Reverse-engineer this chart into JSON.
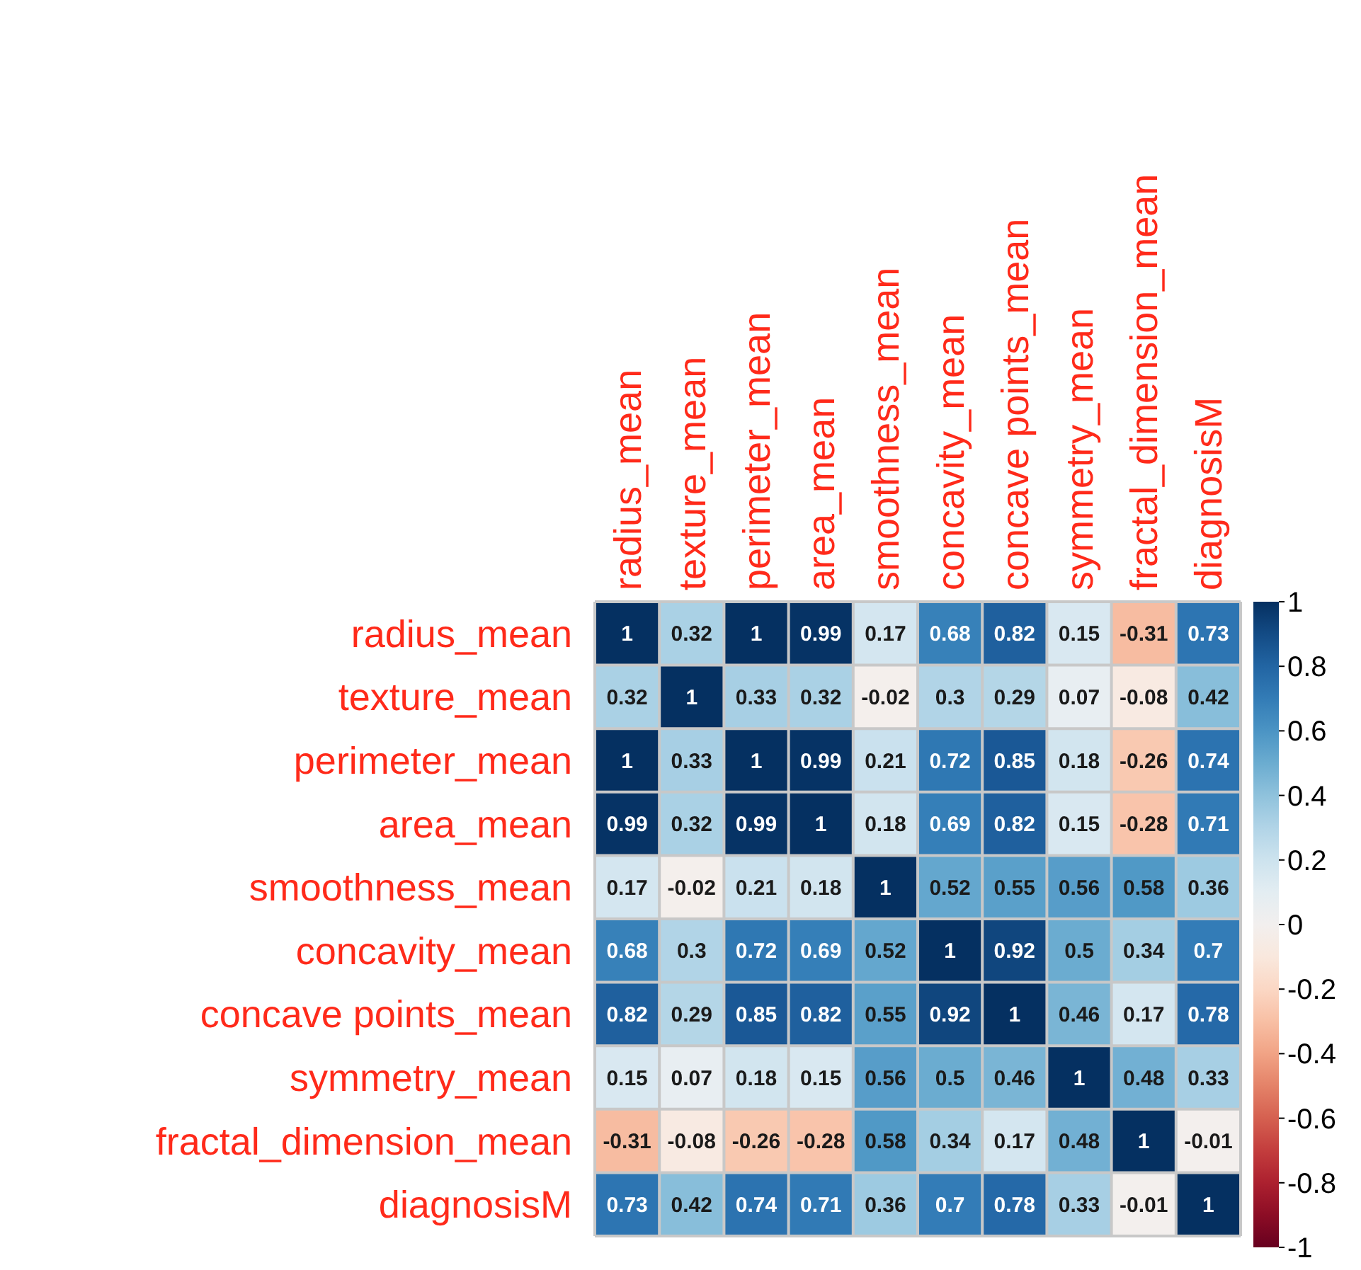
{
  "chart_data": {
    "type": "heatmap",
    "categories": [
      "radius_mean",
      "texture_mean",
      "perimeter_mean",
      "area_mean",
      "smoothness_mean",
      "concavity_mean",
      "concave points_mean",
      "symmetry_mean",
      "fractal_dimension_mean",
      "diagnosisM"
    ],
    "y_categories": [
      "radius_mean",
      "texture_mean",
      "perimeter_mean",
      "area_mean",
      "smoothness_mean",
      "concavity_mean",
      "concave points_mean",
      "symmetry_mean",
      "fractal_dimension_mean",
      "diagnosisM"
    ],
    "cells": [
      [
        1,
        0.32,
        1,
        0.99,
        0.17,
        0.68,
        0.82,
        0.15,
        -0.31,
        0.73
      ],
      [
        0.32,
        1,
        0.33,
        0.32,
        -0.02,
        0.3,
        0.29,
        0.07,
        -0.08,
        0.42
      ],
      [
        1,
        0.33,
        1,
        0.99,
        0.21,
        0.72,
        0.85,
        0.18,
        -0.26,
        0.74
      ],
      [
        0.99,
        0.32,
        0.99,
        1,
        0.18,
        0.69,
        0.82,
        0.15,
        -0.28,
        0.71
      ],
      [
        0.17,
        -0.02,
        0.21,
        0.18,
        1,
        0.52,
        0.55,
        0.56,
        0.58,
        0.36
      ],
      [
        0.68,
        0.3,
        0.72,
        0.69,
        0.52,
        1,
        0.92,
        0.5,
        0.34,
        0.7
      ],
      [
        0.82,
        0.29,
        0.85,
        0.82,
        0.55,
        0.92,
        1,
        0.46,
        0.17,
        0.78
      ],
      [
        0.15,
        0.07,
        0.18,
        0.15,
        0.56,
        0.5,
        0.46,
        1,
        0.48,
        0.33
      ],
      [
        -0.31,
        -0.08,
        -0.26,
        -0.28,
        0.58,
        0.34,
        0.17,
        0.48,
        1,
        -0.01
      ],
      [
        0.73,
        0.42,
        0.74,
        0.71,
        0.36,
        0.7,
        0.78,
        0.33,
        -0.01,
        1
      ]
    ],
    "data_labels": true,
    "clim": [
      -1,
      1
    ],
    "cticks": [
      -1,
      -0.8,
      -0.6,
      -0.4,
      -0.2,
      0,
      0.2,
      0.4,
      0.6,
      0.8,
      1
    ]
  }
}
